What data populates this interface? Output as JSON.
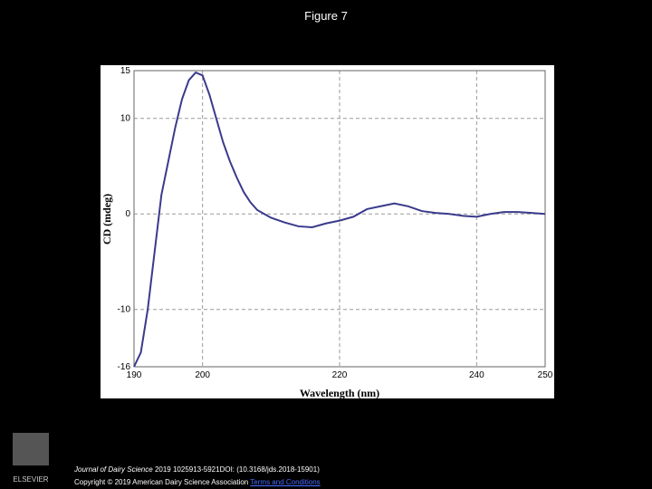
{
  "page_title": "Figure 7",
  "chart_data": {
    "type": "line",
    "x_label": "Wavelength (nm)",
    "y_label": "CD (mdeg)",
    "x": [
      190,
      191,
      192,
      193,
      194,
      195,
      196,
      197,
      198,
      199,
      200,
      201,
      202,
      203,
      204,
      205,
      206,
      207,
      208,
      209,
      210,
      212,
      214,
      216,
      218,
      220,
      222,
      224,
      226,
      228,
      230,
      232,
      234,
      236,
      238,
      240,
      242,
      244,
      246,
      248,
      250
    ],
    "series": [
      {
        "color": "#3a3a8c",
        "values": [
          -16,
          -14.5,
          -10,
          -4,
          2,
          5.5,
          9,
          12,
          14,
          14.8,
          14.5,
          12.5,
          10,
          7.5,
          5.5,
          3.8,
          2.3,
          1.2,
          0.4,
          0,
          -0.4,
          -0.9,
          -1.3,
          -1.4,
          -1,
          -0.7,
          -0.3,
          0.5,
          0.8,
          1.1,
          0.8,
          0.3,
          0.1,
          0,
          -0.2,
          -0.3,
          0,
          0.2,
          0.2,
          0.1,
          0
        ]
      }
    ],
    "xlim": [
      190,
      250
    ],
    "xticks": [
      190,
      200,
      220,
      240,
      250
    ],
    "ylim": [
      -16,
      15
    ],
    "yticks": [
      15,
      10,
      0,
      -10,
      -16
    ],
    "grid": true
  },
  "footer": {
    "journal": "Journal of Dairy Science",
    "citation": "2019 1025913-5921DOI: (10.3168/jds.2018-15901)",
    "copyright": "Copyright © 2019 American Dairy Science Association",
    "link": "Terms and Conditions",
    "publisher": "ELSEVIER"
  }
}
